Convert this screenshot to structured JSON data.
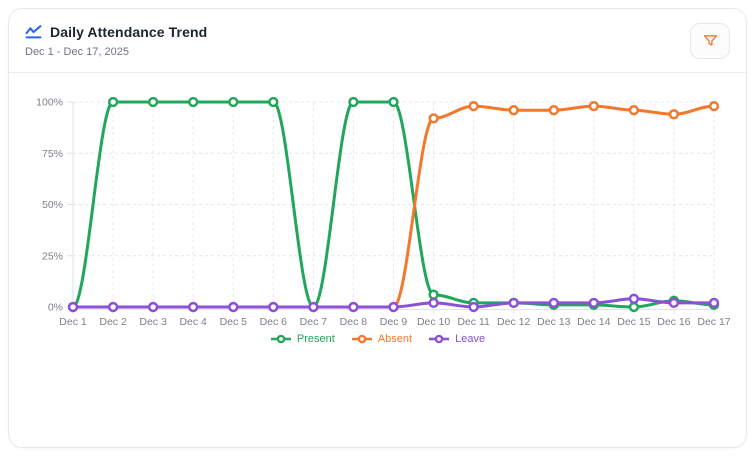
{
  "card": {
    "title": "Daily Attendance Trend",
    "subtitle": "Dec 1 - Dec 17, 2025"
  },
  "colors": {
    "title_icon": "#2563eb",
    "filter_icon": "#f4772b",
    "axis_text": "#7b8088",
    "grid_line": "#e4e6ea",
    "axis_line": "#dfe2e7",
    "card_border": "#e7e9ee"
  },
  "chart_data": {
    "type": "line",
    "curve": "smooth",
    "title": "Daily Attendance Trend",
    "xlabel": "",
    "ylabel": "",
    "ylim": [
      0,
      100
    ],
    "y_ticks": [
      0,
      25,
      50,
      75,
      100
    ],
    "y_tick_labels": [
      "0%",
      "25%",
      "50%",
      "75%",
      "100%"
    ],
    "grid": true,
    "grid_style": "dashed",
    "legend_position": "bottom",
    "marker": "hollow-circle",
    "categories": [
      "Dec 1",
      "Dec 2",
      "Dec 3",
      "Dec 4",
      "Dec 5",
      "Dec 6",
      "Dec 7",
      "Dec 8",
      "Dec 9",
      "Dec 10",
      "Dec 11",
      "Dec 12",
      "Dec 13",
      "Dec 14",
      "Dec 15",
      "Dec 16",
      "Dec 17"
    ],
    "series": [
      {
        "name": "Present",
        "color": "#21a65b",
        "values": [
          0,
          100,
          100,
          100,
          100,
          100,
          0,
          100,
          100,
          6,
          2,
          2,
          1,
          1,
          0,
          3,
          1
        ]
      },
      {
        "name": "Absent",
        "color": "#f4772b",
        "values": [
          0,
          0,
          0,
          0,
          0,
          0,
          0,
          0,
          0,
          92,
          98,
          96,
          96,
          98,
          96,
          94,
          98
        ]
      },
      {
        "name": "Leave",
        "color": "#8b4fd8",
        "values": [
          0,
          0,
          0,
          0,
          0,
          0,
          0,
          0,
          0,
          2,
          0,
          2,
          2,
          2,
          4,
          2,
          2
        ]
      }
    ]
  }
}
